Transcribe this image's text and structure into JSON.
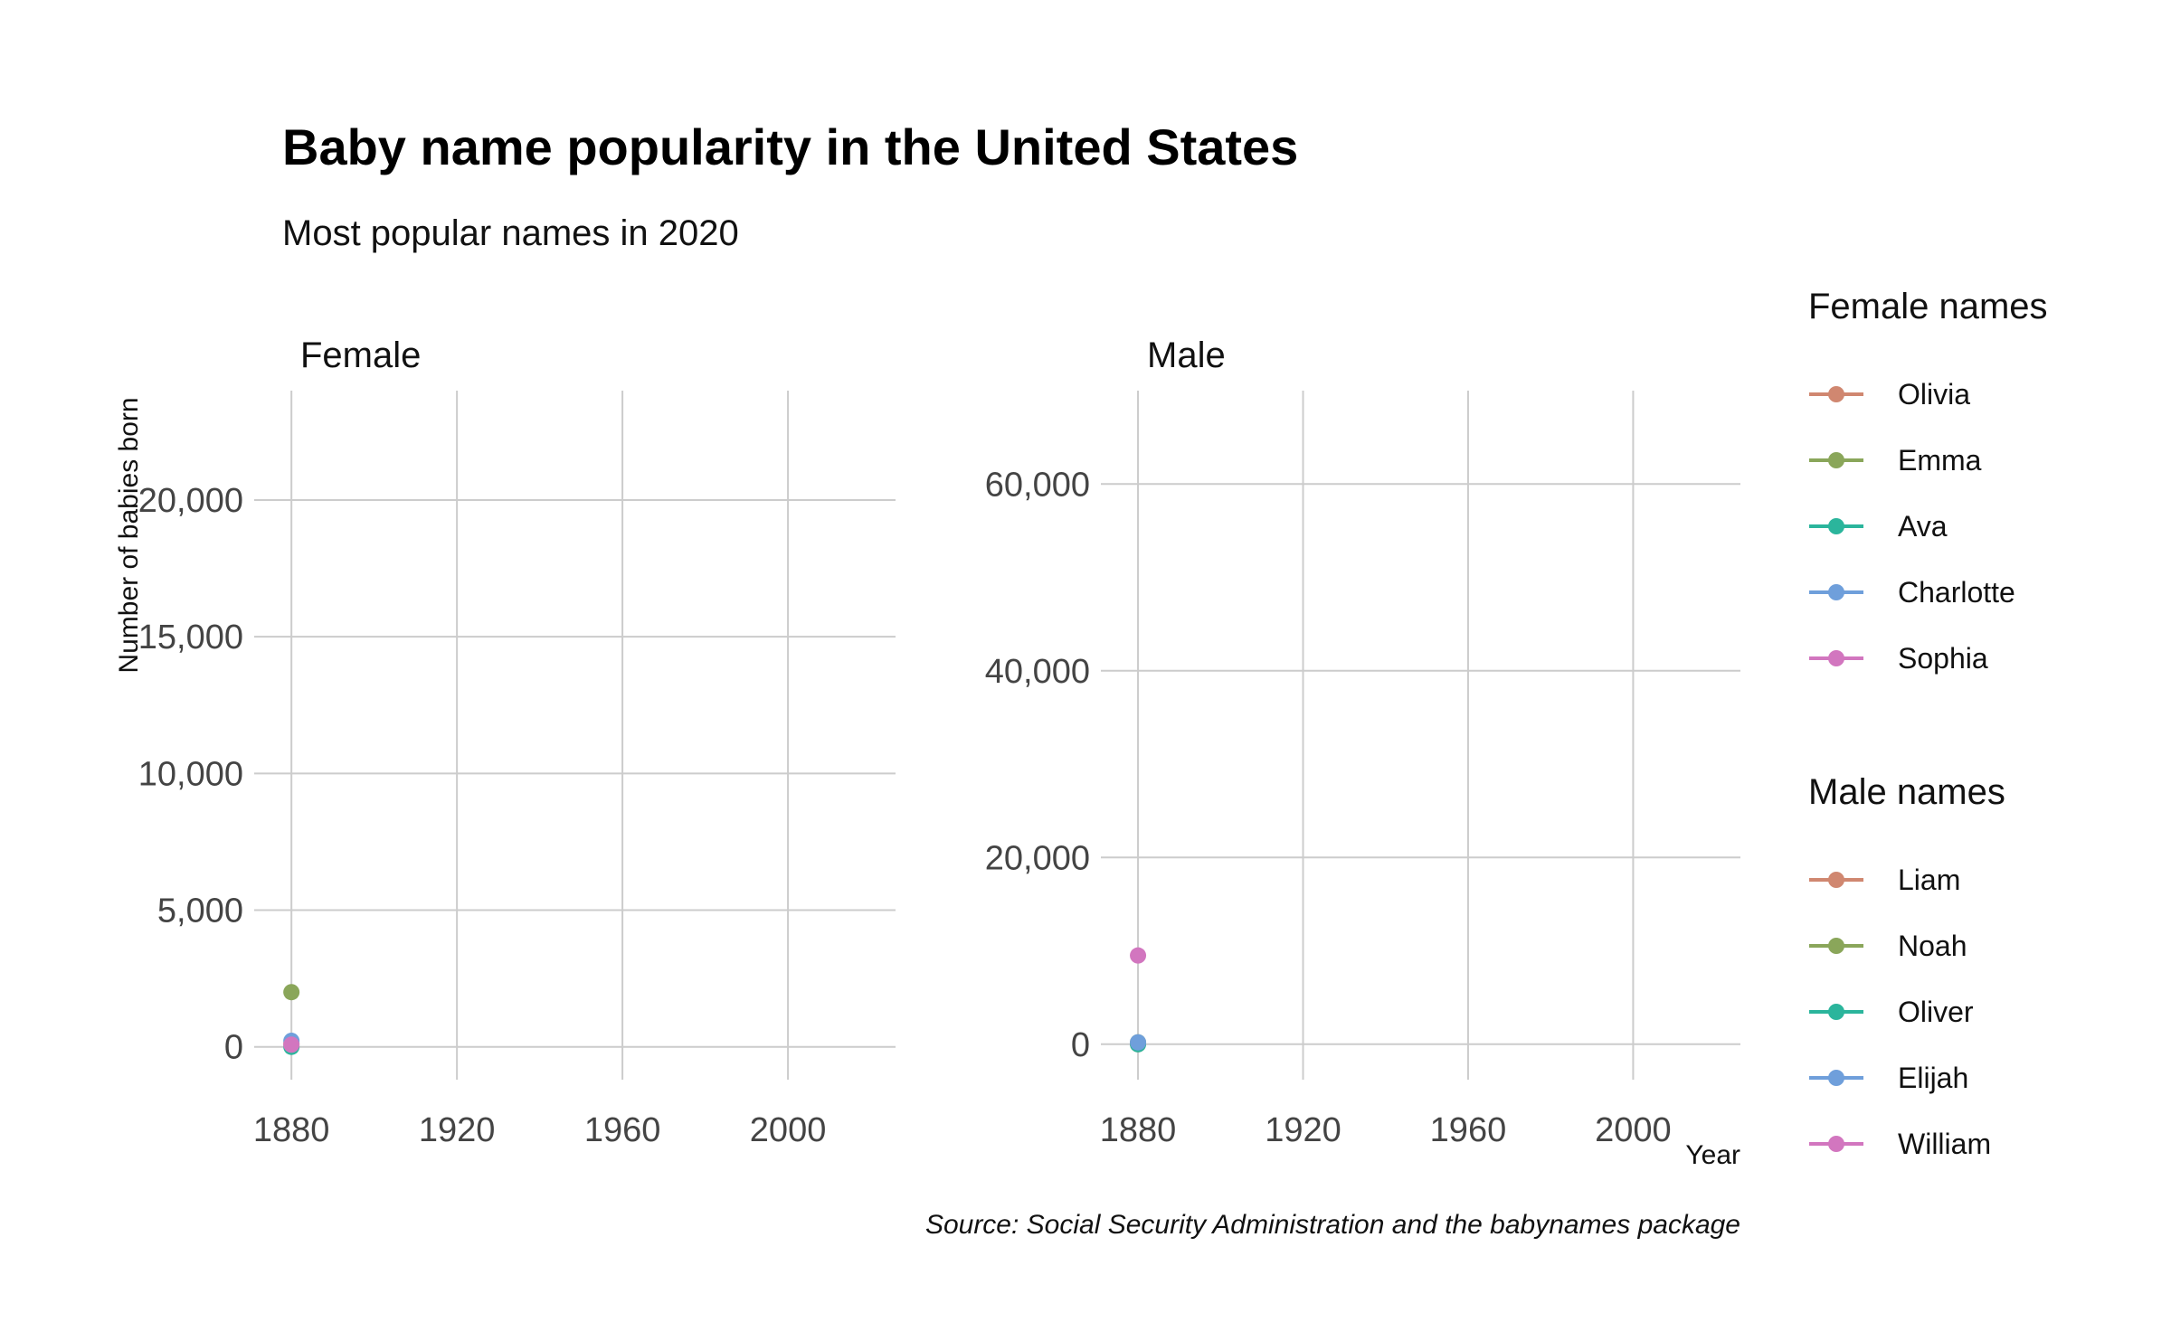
{
  "chart_data": {
    "type": "line",
    "title": "Baby name popularity in the United States",
    "subtitle": "Most popular names in 2020",
    "caption": "Source: Social Security Administration and the babynames package",
    "xlabel": "Year",
    "ylabel": "Number of babies born",
    "grid": true,
    "legend_placement": "right",
    "facets": [
      {
        "label": "Female",
        "legend_title": "Female names",
        "xlim": [
          1871,
          2026
        ],
        "ylim": [
          -1200,
          24000
        ],
        "x_ticks": [
          1880,
          1920,
          1960,
          2000
        ],
        "x_tick_labels": [
          "1880",
          "1920",
          "1960",
          "2000"
        ],
        "y_ticks": [
          0,
          5000,
          10000,
          15000,
          20000
        ],
        "y_tick_labels": [
          "0",
          "5,000",
          "10,000",
          "15,000",
          "20,000"
        ],
        "series": [
          {
            "name": "Olivia",
            "color": "#D08770",
            "x": [
              1880
            ],
            "y": [
              120
            ]
          },
          {
            "name": "Emma",
            "color": "#8AA65A",
            "x": [
              1880
            ],
            "y": [
              2000
            ]
          },
          {
            "name": "Ava",
            "color": "#2BB59C",
            "x": [
              1880
            ],
            "y": [
              0
            ]
          },
          {
            "name": "Charlotte",
            "color": "#6F9FDB",
            "x": [
              1880
            ],
            "y": [
              220
            ]
          },
          {
            "name": "Sophia",
            "color": "#D276BF",
            "x": [
              1880
            ],
            "y": [
              80
            ]
          }
        ]
      },
      {
        "label": "Male",
        "legend_title": "Male names",
        "xlim": [
          1871,
          2026
        ],
        "ylim": [
          -3800,
          70000
        ],
        "x_ticks": [
          1880,
          1920,
          1960,
          2000
        ],
        "x_tick_labels": [
          "1880",
          "1920",
          "1960",
          "2000"
        ],
        "y_ticks": [
          0,
          20000,
          40000,
          60000
        ],
        "y_tick_labels": [
          "0",
          "20,000",
          "40,000",
          "60,000"
        ],
        "series": [
          {
            "name": "Liam",
            "color": "#D08770",
            "x": [
              1880
            ],
            "y": [
              0
            ]
          },
          {
            "name": "Noah",
            "color": "#8AA65A",
            "x": [
              1880
            ],
            "y": [
              200
            ]
          },
          {
            "name": "Oliver",
            "color": "#2BB59C",
            "x": [
              1880
            ],
            "y": [
              0
            ]
          },
          {
            "name": "Elijah",
            "color": "#6F9FDB",
            "x": [
              1880
            ],
            "y": [
              200
            ]
          },
          {
            "name": "William",
            "color": "#D276BF",
            "x": [
              1880
            ],
            "y": [
              9500
            ]
          }
        ]
      }
    ]
  }
}
